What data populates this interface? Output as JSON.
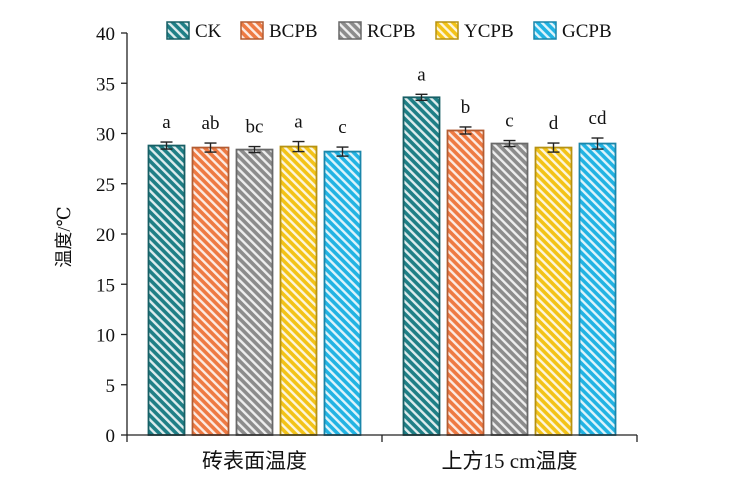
{
  "chart_data": {
    "type": "bar",
    "ylabel": "温度/℃",
    "ylim": [
      0,
      40
    ],
    "yticks": [
      0,
      5,
      10,
      15,
      20,
      25,
      30,
      35,
      40
    ],
    "categories": [
      "砖表面温度",
      "上方15 cm温度"
    ],
    "legend_position": "top",
    "grid": false,
    "series": [
      {
        "name": "CK",
        "color": "#1f7f86",
        "values": [
          28.8,
          33.6
        ],
        "errors": [
          0.35,
          0.3
        ],
        "letters": [
          "a",
          "a"
        ]
      },
      {
        "name": "BCPB",
        "color": "#ee7a43",
        "values": [
          28.6,
          30.3
        ],
        "errors": [
          0.45,
          0.35
        ],
        "letters": [
          "ab",
          "b"
        ]
      },
      {
        "name": "RCPB",
        "color": "#8c8c8c",
        "values": [
          28.4,
          29.0
        ],
        "errors": [
          0.3,
          0.3
        ],
        "letters": [
          "bc",
          "c"
        ]
      },
      {
        "name": "YCPB",
        "color": "#f3c318",
        "values": [
          28.7,
          28.6
        ],
        "errors": [
          0.5,
          0.45
        ],
        "letters": [
          "a",
          "d"
        ]
      },
      {
        "name": "GCPB",
        "color": "#22b3e3",
        "values": [
          28.2,
          29.0
        ],
        "errors": [
          0.45,
          0.55
        ],
        "letters": [
          "c",
          "cd"
        ]
      }
    ]
  }
}
